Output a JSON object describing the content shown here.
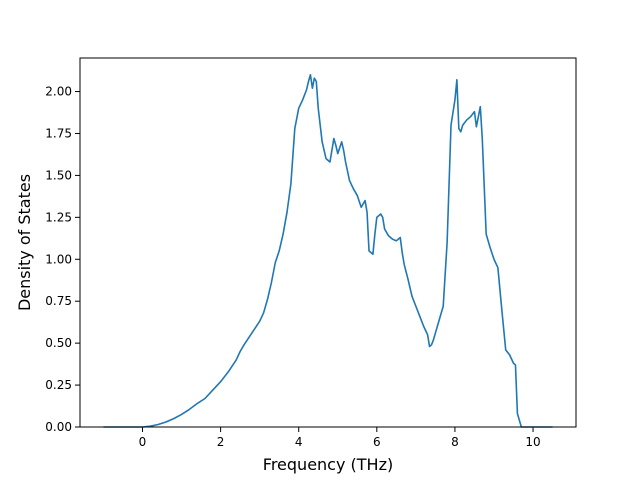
{
  "chart_data": {
    "type": "line",
    "title": "",
    "xlabel": "Frequency (THz)",
    "ylabel": "Density of States",
    "xlim": [
      -1.6,
      11.1
    ],
    "ylim": [
      0.0,
      2.2
    ],
    "grid": false,
    "legend": "none",
    "x_ticks": [
      0,
      2,
      4,
      6,
      8,
      10
    ],
    "x_tick_labels": [
      "0",
      "2",
      "4",
      "6",
      "8",
      "10"
    ],
    "y_ticks": [
      0.0,
      0.25,
      0.5,
      0.75,
      1.0,
      1.25,
      1.5,
      1.75,
      2.0
    ],
    "y_tick_labels": [
      "0.00",
      "0.25",
      "0.50",
      "0.75",
      "1.00",
      "1.25",
      "1.50",
      "1.75",
      "2.00"
    ],
    "series": [
      {
        "color": "#1f77b4",
        "x": [
          -1.0,
          -0.5,
          0.0,
          0.2,
          0.4,
          0.6,
          0.8,
          1.0,
          1.2,
          1.4,
          1.6,
          1.8,
          2.0,
          2.2,
          2.4,
          2.5,
          2.6,
          2.8,
          3.0,
          3.1,
          3.2,
          3.3,
          3.4,
          3.5,
          3.6,
          3.7,
          3.8,
          3.9,
          4.0,
          4.1,
          4.2,
          4.25,
          4.3,
          4.35,
          4.4,
          4.45,
          4.5,
          4.6,
          4.7,
          4.8,
          4.9,
          4.95,
          5.0,
          5.1,
          5.15,
          5.2,
          5.3,
          5.4,
          5.5,
          5.6,
          5.7,
          5.75,
          5.8,
          5.9,
          5.95,
          6.0,
          6.1,
          6.15,
          6.2,
          6.3,
          6.4,
          6.5,
          6.6,
          6.65,
          6.7,
          6.8,
          6.9,
          7.0,
          7.1,
          7.2,
          7.3,
          7.35,
          7.4,
          7.45,
          7.5,
          7.6,
          7.7,
          7.8,
          7.9,
          8.0,
          8.05,
          8.1,
          8.15,
          8.2,
          8.3,
          8.4,
          8.5,
          8.55,
          8.6,
          8.65,
          8.7,
          8.8,
          8.9,
          9.0,
          9.1,
          9.2,
          9.3,
          9.4,
          9.5,
          9.55,
          9.6,
          9.7,
          10.0,
          10.5
        ],
        "y": [
          0.0,
          0.0,
          0.0,
          0.005,
          0.015,
          0.03,
          0.05,
          0.075,
          0.105,
          0.14,
          0.17,
          0.22,
          0.27,
          0.33,
          0.4,
          0.45,
          0.49,
          0.56,
          0.63,
          0.68,
          0.76,
          0.86,
          0.98,
          1.05,
          1.15,
          1.28,
          1.45,
          1.78,
          1.9,
          1.95,
          2.01,
          2.06,
          2.1,
          2.02,
          2.08,
          2.06,
          1.9,
          1.7,
          1.6,
          1.58,
          1.72,
          1.68,
          1.63,
          1.7,
          1.65,
          1.58,
          1.47,
          1.42,
          1.38,
          1.31,
          1.35,
          1.28,
          1.05,
          1.03,
          1.15,
          1.25,
          1.27,
          1.25,
          1.18,
          1.14,
          1.12,
          1.11,
          1.13,
          1.04,
          0.97,
          0.88,
          0.78,
          0.72,
          0.66,
          0.6,
          0.55,
          0.48,
          0.49,
          0.52,
          0.56,
          0.64,
          0.72,
          1.1,
          1.8,
          1.95,
          2.07,
          1.78,
          1.76,
          1.8,
          1.83,
          1.85,
          1.88,
          1.79,
          1.85,
          1.91,
          1.72,
          1.15,
          1.07,
          1.0,
          0.95,
          0.7,
          0.46,
          0.43,
          0.38,
          0.37,
          0.08,
          0.0,
          0.0,
          0.0
        ]
      }
    ]
  }
}
